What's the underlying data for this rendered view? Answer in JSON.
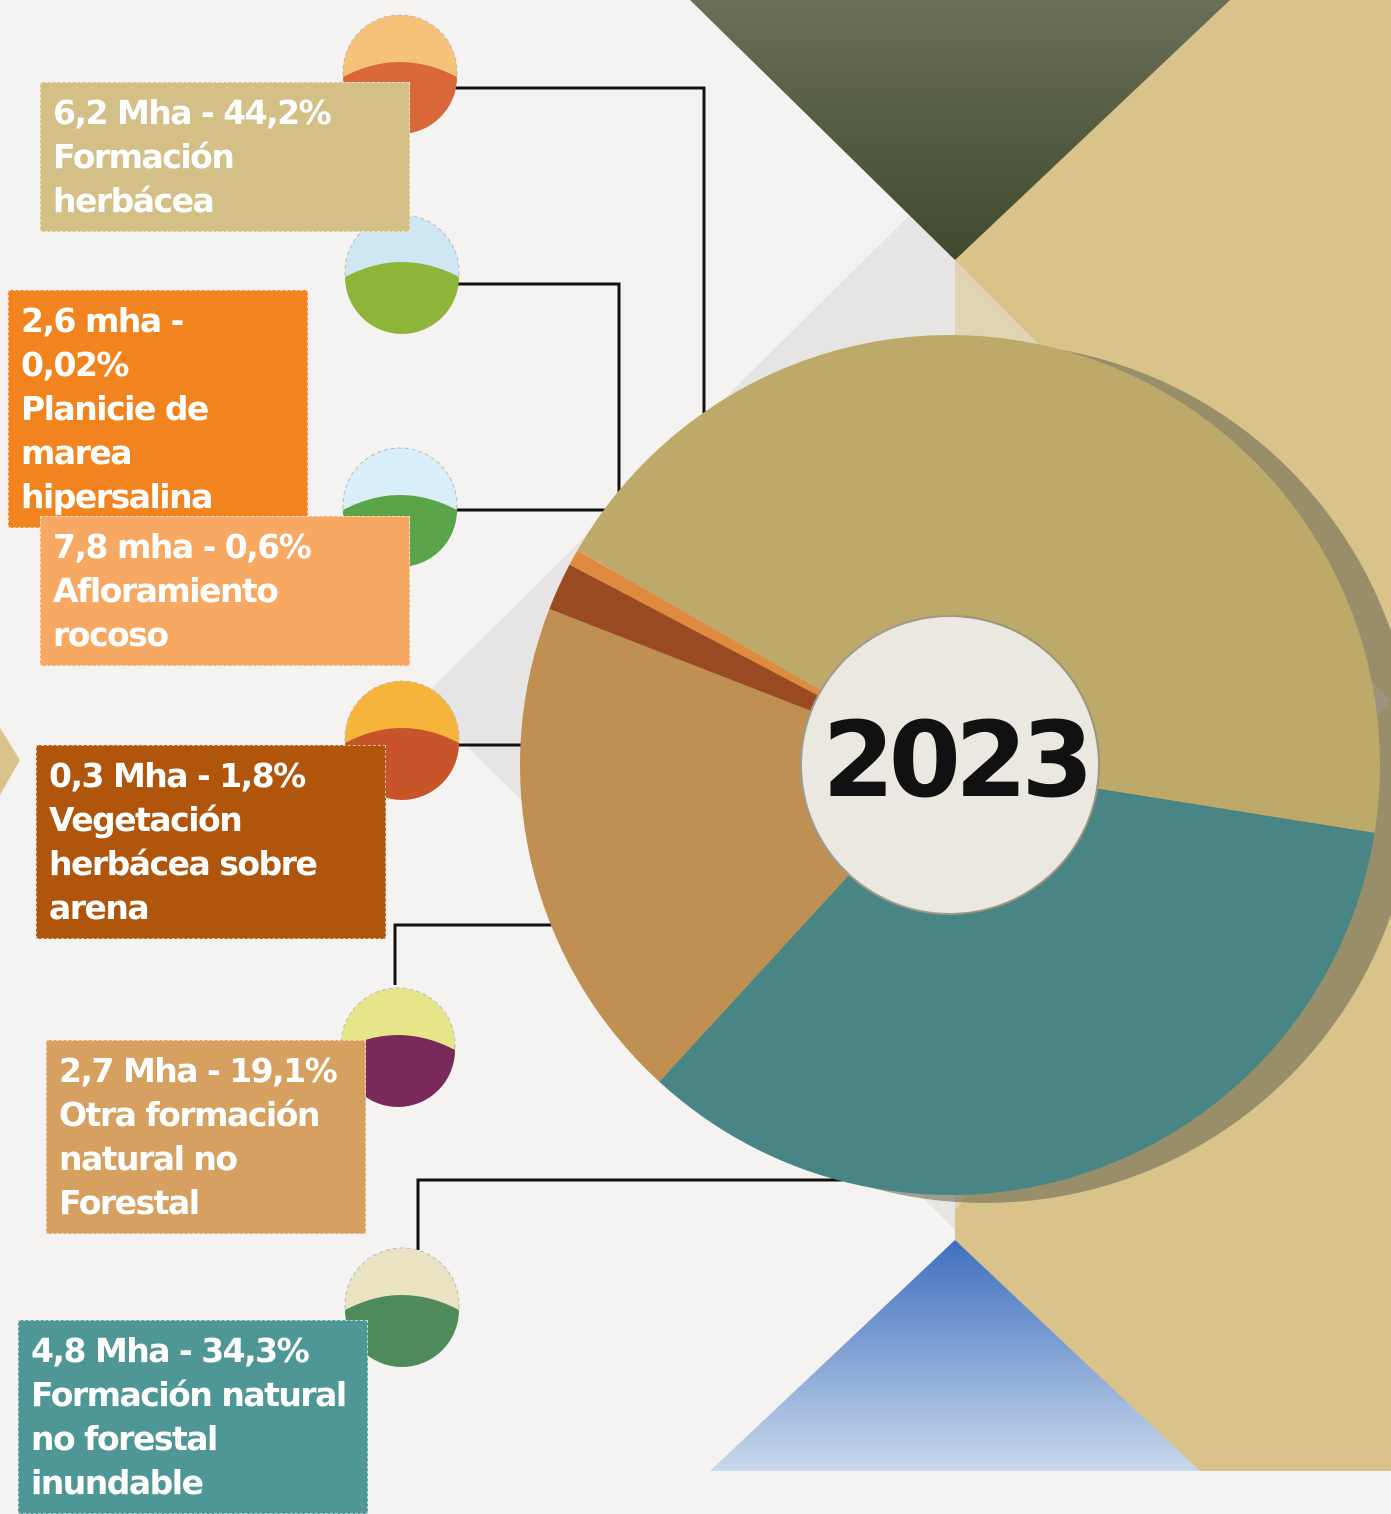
{
  "chart_data": {
    "type": "pie",
    "donut": true,
    "title": "2023",
    "categories": [
      "Formación herbácea",
      "Planicie de marea hipersalina",
      "Afloramiento rocoso",
      "Vegetación herbácea sobre arena",
      "Otra formación natural no Forestal",
      "Formación natural no forestal inundable"
    ],
    "values": [
      44.2,
      0.02,
      0.6,
      1.8,
      19.1,
      34.3
    ],
    "value_labels": [
      "6,2 Mha - 44,2%",
      "2,6 mha - 0,02%",
      "7,8 mha - 0,6%",
      "0,3 Mha - 1,8%",
      "2,7 Mha - 19,1%",
      "4,8 Mha - 34,3%"
    ],
    "colors": [
      "#bda96a",
      "#e8a060",
      "#e08a40",
      "#9a4a22",
      "#c08f52",
      "#4a8585"
    ]
  }
}
